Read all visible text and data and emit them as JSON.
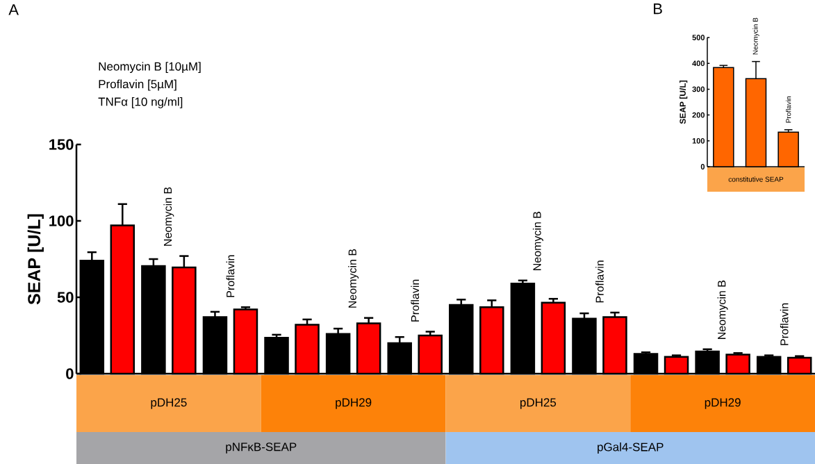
{
  "chart_data": [
    {
      "type": "bar",
      "title": "A",
      "ylabel": "SEAP [U/L]",
      "ylim": [
        0,
        150
      ],
      "yticks": [
        0,
        50,
        100,
        150
      ],
      "categories": [
        null,
        "Neomycin B",
        "Proflavin",
        null,
        "Neomycin B",
        "Proflavin",
        null,
        "Neomycin B",
        "Proflavin",
        null,
        "Neomycin B",
        "Proflavin"
      ],
      "series": [
        {
          "color": "#000000",
          "values": [
            74,
            70.5,
            37,
            23.5,
            26,
            20,
            45,
            59,
            36,
            13,
            14.5,
            11
          ],
          "errors": [
            5.5,
            4.5,
            3.5,
            2,
            3.5,
            4,
            3.5,
            2,
            3.5,
            1,
            1.5,
            1
          ]
        },
        {
          "color": "#ff0000",
          "values": [
            97,
            69.5,
            42,
            32,
            33,
            25,
            43.5,
            46.5,
            37,
            11,
            12.5,
            10.5
          ],
          "errors": [
            14,
            7.5,
            1.5,
            3.5,
            3.5,
            2.5,
            4.5,
            2.5,
            3,
            1,
            1,
            1
          ]
        }
      ],
      "annotations": [
        "Neomycin B [10µM]",
        "Proflavin [5µM]",
        "TNFα [10 ng/ml]",
        "pDH25",
        "pDH29",
        "pDH25",
        "pDH29",
        "pNFκB-SEAP",
        "pGal4-SEAP"
      ]
    },
    {
      "type": "bar",
      "title": "B",
      "ylabel": "SEAP [U/L]",
      "ylim": [
        0,
        500
      ],
      "yticks": [
        0,
        100,
        200,
        300,
        400,
        500
      ],
      "categories": [
        null,
        "Neomycin B",
        "Proflavin"
      ],
      "color": "#ff6600",
      "values": [
        384,
        341,
        134
      ],
      "errors": [
        8,
        66,
        9
      ],
      "annotations": [
        "constitutive SEAP"
      ]
    }
  ]
}
